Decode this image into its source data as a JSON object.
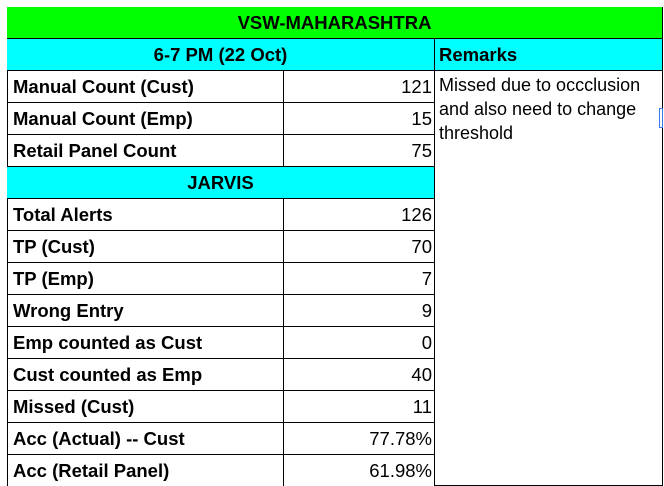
{
  "title": "VSW-MAHARASHTRA",
  "manual_section": {
    "header": "6-7 PM (22 Oct)",
    "rows": [
      {
        "label": "Manual Count (Cust)",
        "value": "121"
      },
      {
        "label": "Manual Count (Emp)",
        "value": "15"
      },
      {
        "label": "Retail Panel Count",
        "value": "75"
      }
    ]
  },
  "remarks": {
    "header": "Remarks",
    "lines": [
      "Missed due to occclusion",
      "and also need to change",
      "threshold"
    ]
  },
  "jarvis_section": {
    "header": "JARVIS",
    "rows": [
      {
        "label": "Total Alerts",
        "value": "126"
      },
      {
        "label": "TP (Cust)",
        "value": "70"
      },
      {
        "label": "TP (Emp)",
        "value": "7"
      },
      {
        "label": "Wrong Entry",
        "value": "9"
      },
      {
        "label": "Emp counted as Cust",
        "value": "0"
      },
      {
        "label": "Cust counted as Emp",
        "value": "40"
      },
      {
        "label": "Missed (Cust)",
        "value": "11"
      },
      {
        "label": "Acc (Actual) -- Cust",
        "value": "77.78%"
      },
      {
        "label": "Acc (Retail Panel)",
        "value": "61.98%"
      }
    ]
  },
  "colors": {
    "title_bg": "#00ff00",
    "header_bg": "#00ffff",
    "border": "#000000"
  }
}
